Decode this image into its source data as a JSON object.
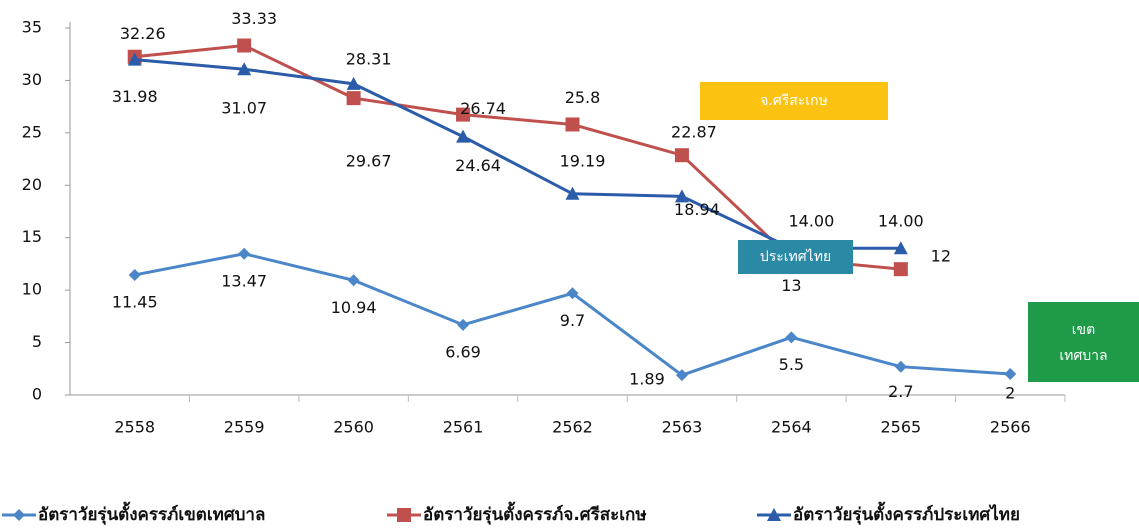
{
  "chart_data": {
    "type": "line",
    "categories": [
      "2558",
      "2559",
      "2560",
      "2561",
      "2562",
      "2563",
      "2564",
      "2565",
      "2566"
    ],
    "series": [
      {
        "name": "อัตราวัยรุ่นตั้งครรภ์เขตเทศบาล",
        "color": "#4a86c8",
        "marker": "diamond",
        "values": [
          11.45,
          13.47,
          10.94,
          6.69,
          9.7,
          1.89,
          5.5,
          2.7,
          2
        ]
      },
      {
        "name": "อัตราวัยรุ่นตั้งครรภ์จ.ศรีสะเกษ",
        "color": "#c0504d",
        "marker": "square",
        "values": [
          32.26,
          33.33,
          28.31,
          26.74,
          25.8,
          22.87,
          13,
          12,
          null
        ]
      },
      {
        "name": "อัตราวัยรุ่นตั้งครรภ์ประเทศไทย",
        "color": "#2a5caa",
        "marker": "triangle",
        "values": [
          31.98,
          31.07,
          29.67,
          24.64,
          19.19,
          18.94,
          14,
          14,
          null
        ],
        "value_labels": [
          "31.98",
          "31.07",
          "29.67",
          "24.64",
          "19.19",
          "18.94",
          "14.00",
          "14.00",
          null
        ]
      }
    ],
    "ylim": [
      0,
      35
    ],
    "yticks": [
      0,
      5,
      10,
      15,
      20,
      25,
      30,
      35
    ],
    "annotations": [
      {
        "text": "จ.ศรีสะเกษ",
        "color": "#fcc211"
      },
      {
        "text": "ประเทศไทย",
        "color": "#2a8aa6"
      },
      {
        "text": "เขต เทศบาล",
        "color": "#1e9a48"
      }
    ]
  }
}
